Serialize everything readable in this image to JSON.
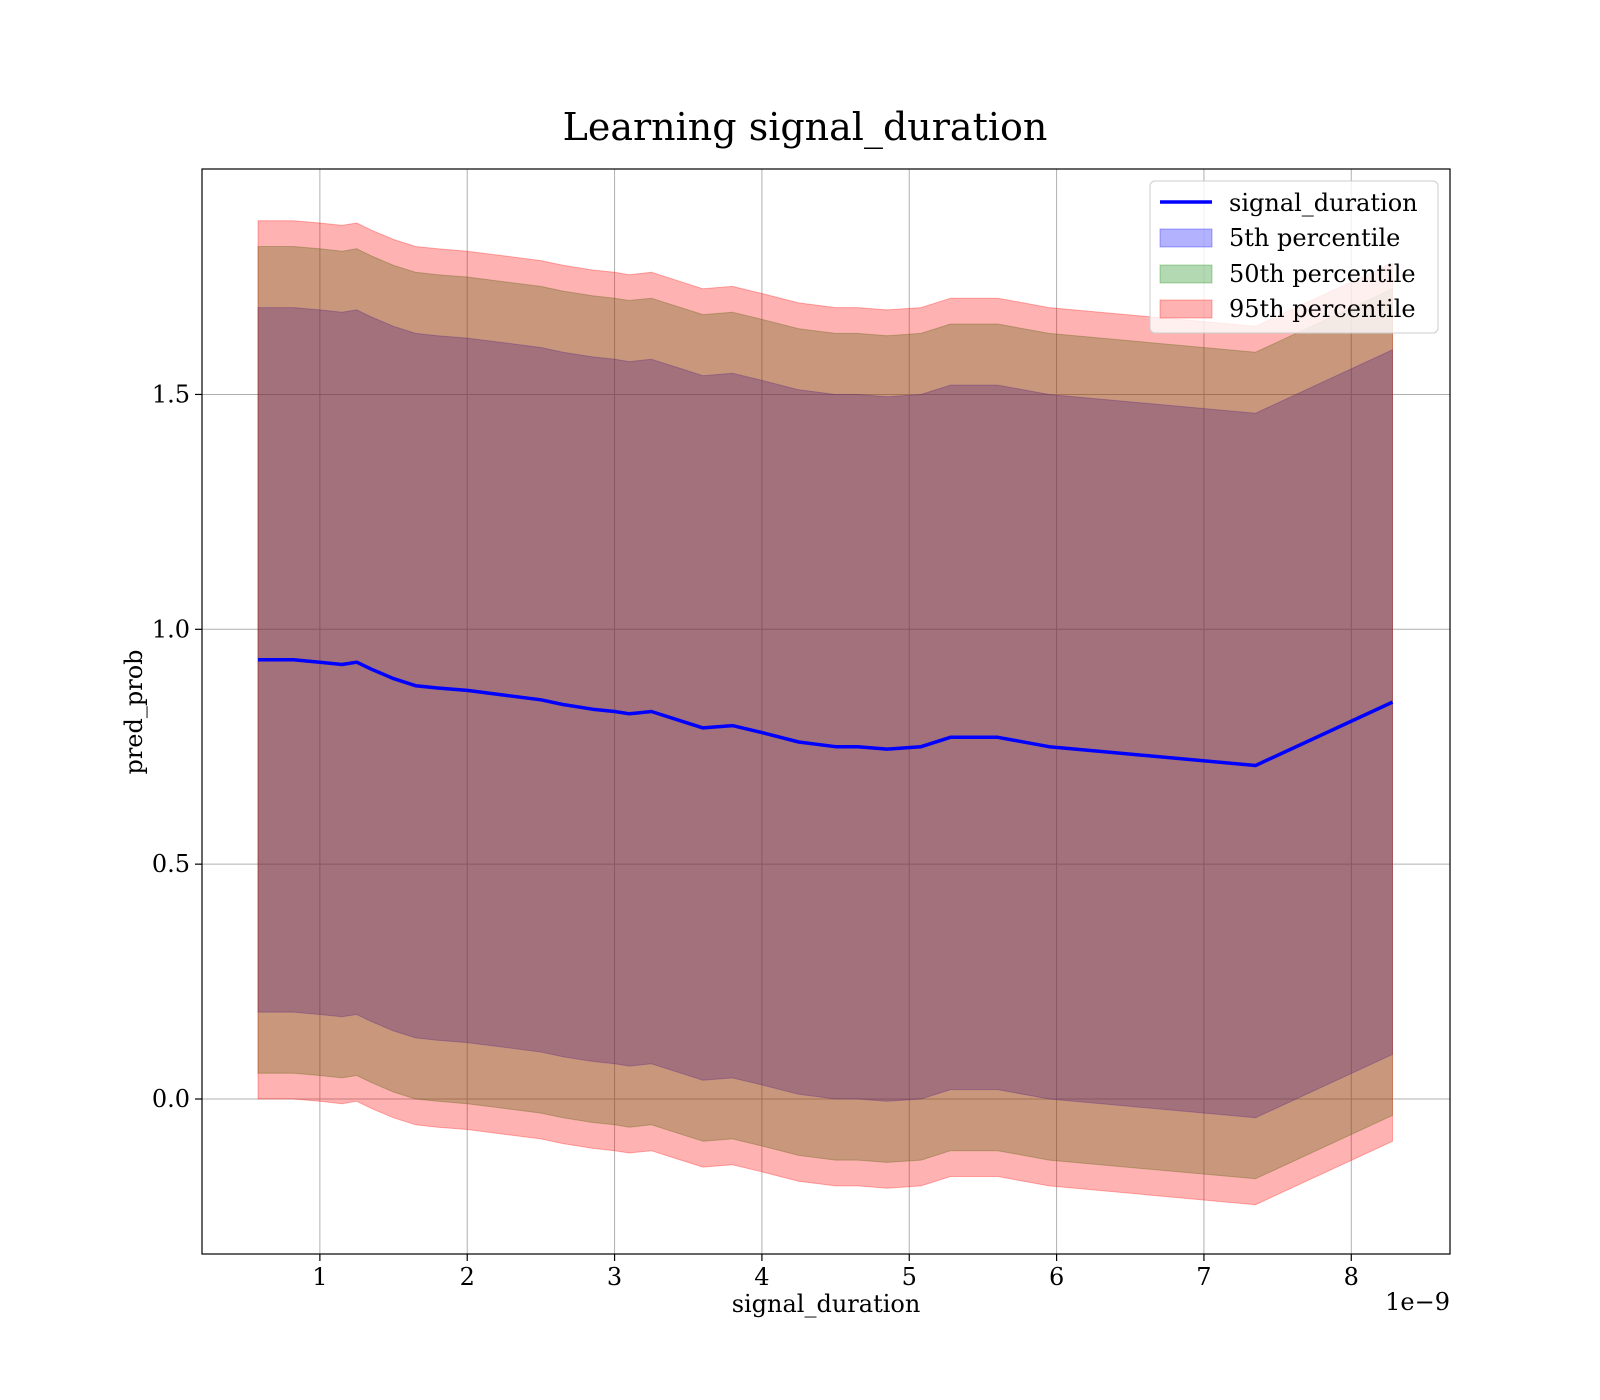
{
  "chart_data": {
    "type": "line",
    "title": "Learning signal_duration",
    "xlabel": "signal_duration",
    "ylabel": "pred_prob",
    "x_offset_label": "1e−9",
    "xlim": [
      0.2,
      8.67
    ],
    "ylim": [
      -0.33,
      1.98
    ],
    "xticks": [
      1,
      2,
      3,
      4,
      5,
      6,
      7,
      8
    ],
    "yticks": [
      0.0,
      0.5,
      1.0,
      1.5
    ],
    "ytick_labels": [
      "0.0",
      "0.5",
      "1.0",
      "1.5"
    ],
    "grid": true,
    "legend_position": "top-right",
    "x": [
      0.58,
      0.82,
      1.0,
      1.15,
      1.25,
      1.35,
      1.5,
      1.65,
      1.8,
      2.0,
      2.25,
      2.5,
      2.65,
      2.85,
      3.0,
      3.1,
      3.25,
      3.45,
      3.6,
      3.8,
      4.0,
      4.25,
      4.5,
      4.65,
      4.85,
      5.08,
      5.28,
      5.6,
      5.95,
      7.35,
      8.28
    ],
    "series": [
      {
        "name": "signal_duration",
        "kind": "line",
        "color": "#0000ff",
        "values": [
          0.935,
          0.935,
          0.93,
          0.925,
          0.93,
          0.915,
          0.895,
          0.88,
          0.875,
          0.87,
          0.86,
          0.85,
          0.84,
          0.83,
          0.825,
          0.82,
          0.825,
          0.805,
          0.79,
          0.795,
          0.78,
          0.76,
          0.75,
          0.75,
          0.745,
          0.75,
          0.77,
          0.77,
          0.75,
          0.71,
          0.845
        ]
      },
      {
        "name": "5th percentile",
        "kind": "band",
        "color": "#0000ff",
        "low": [
          0.185,
          0.185,
          0.18,
          0.175,
          0.18,
          0.165,
          0.145,
          0.13,
          0.125,
          0.12,
          0.11,
          0.1,
          0.09,
          0.08,
          0.075,
          0.07,
          0.075,
          0.055,
          0.04,
          0.045,
          0.03,
          0.01,
          0.0,
          0.0,
          -0.005,
          0.0,
          0.02,
          0.02,
          0.0,
          -0.04,
          0.095
        ],
        "high": [
          1.685,
          1.685,
          1.68,
          1.675,
          1.68,
          1.665,
          1.645,
          1.63,
          1.625,
          1.62,
          1.61,
          1.6,
          1.59,
          1.58,
          1.575,
          1.57,
          1.575,
          1.555,
          1.54,
          1.545,
          1.53,
          1.51,
          1.5,
          1.5,
          1.495,
          1.5,
          1.52,
          1.52,
          1.5,
          1.46,
          1.595
        ]
      },
      {
        "name": "50th percentile",
        "kind": "band",
        "color": "#008000",
        "low": [
          0.055,
          0.055,
          0.05,
          0.045,
          0.05,
          0.035,
          0.015,
          0.0,
          -0.005,
          -0.01,
          -0.02,
          -0.03,
          -0.04,
          -0.05,
          -0.055,
          -0.06,
          -0.055,
          -0.075,
          -0.09,
          -0.085,
          -0.1,
          -0.12,
          -0.13,
          -0.13,
          -0.135,
          -0.13,
          -0.11,
          -0.11,
          -0.13,
          -0.17,
          -0.035
        ],
        "high": [
          1.815,
          1.815,
          1.81,
          1.805,
          1.81,
          1.795,
          1.775,
          1.76,
          1.755,
          1.75,
          1.74,
          1.73,
          1.72,
          1.71,
          1.705,
          1.7,
          1.705,
          1.685,
          1.67,
          1.675,
          1.66,
          1.64,
          1.63,
          1.63,
          1.625,
          1.63,
          1.65,
          1.65,
          1.63,
          1.59,
          1.725
        ]
      },
      {
        "name": "95th percentile",
        "kind": "band",
        "color": "#ff0000",
        "low": [
          0.0,
          0.0,
          -0.005,
          -0.01,
          -0.005,
          -0.02,
          -0.04,
          -0.055,
          -0.06,
          -0.065,
          -0.075,
          -0.085,
          -0.095,
          -0.105,
          -0.11,
          -0.115,
          -0.11,
          -0.13,
          -0.145,
          -0.14,
          -0.155,
          -0.175,
          -0.185,
          -0.185,
          -0.19,
          -0.185,
          -0.165,
          -0.165,
          -0.185,
          -0.225,
          -0.09
        ],
        "high": [
          1.87,
          1.87,
          1.865,
          1.86,
          1.865,
          1.85,
          1.83,
          1.815,
          1.81,
          1.805,
          1.795,
          1.785,
          1.775,
          1.765,
          1.76,
          1.755,
          1.76,
          1.74,
          1.725,
          1.73,
          1.715,
          1.695,
          1.685,
          1.685,
          1.68,
          1.685,
          1.705,
          1.705,
          1.685,
          1.645,
          1.78
        ]
      }
    ]
  }
}
